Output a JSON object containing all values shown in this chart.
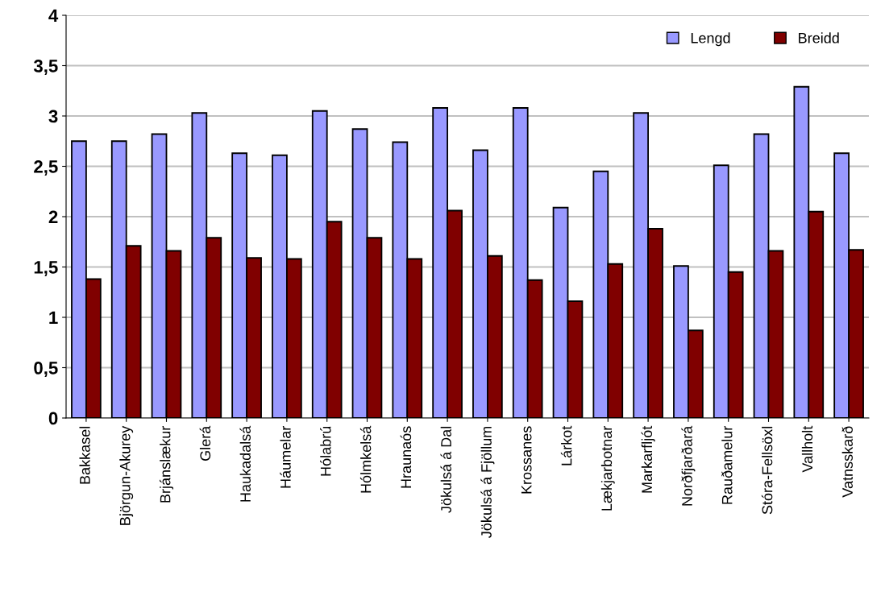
{
  "chart_data": {
    "type": "bar",
    "categories": [
      "Bakkasel",
      "Björgun-Akurey",
      "Brjánslækur",
      "Glerá",
      "Haukadalsá",
      "Háumelar",
      "Hólabrú",
      "Hólmkelsá",
      "Hraunaós",
      "Jökulsá á Dal",
      "Jökulsá á Fjöllum",
      "Krossanes",
      "Lárkot",
      "Lækjarbotnar",
      "Markarfljót",
      "Norðfjarðará",
      "Rauðamelur",
      "Stóra-Fellsöxl",
      "Vallholt",
      "Vatnsskarð"
    ],
    "series": [
      {
        "name": "Lengd",
        "color": "#9999ff",
        "values": [
          2.75,
          2.75,
          2.82,
          3.03,
          2.63,
          2.61,
          3.05,
          2.87,
          2.74,
          3.08,
          2.66,
          3.08,
          2.09,
          2.45,
          3.03,
          1.51,
          2.51,
          2.82,
          3.29,
          2.63
        ]
      },
      {
        "name": "Breidd",
        "color": "#800000",
        "values": [
          1.38,
          1.71,
          1.66,
          1.79,
          1.59,
          1.58,
          1.95,
          1.79,
          1.58,
          2.06,
          1.61,
          1.37,
          1.16,
          1.53,
          1.88,
          0.87,
          1.45,
          1.66,
          2.05,
          1.67
        ]
      }
    ],
    "ylim": [
      0,
      4
    ],
    "yticks": [
      {
        "value": 0,
        "label": "0"
      },
      {
        "value": 0.5,
        "label": "0,5"
      },
      {
        "value": 1,
        "label": "1"
      },
      {
        "value": 1.5,
        "label": "1,5"
      },
      {
        "value": 2,
        "label": "2"
      },
      {
        "value": 2.5,
        "label": "2,5"
      },
      {
        "value": 3,
        "label": "3"
      },
      {
        "value": 3.5,
        "label": "3,5"
      },
      {
        "value": 4,
        "label": "4"
      }
    ],
    "grid": "y",
    "legend": "top right"
  }
}
